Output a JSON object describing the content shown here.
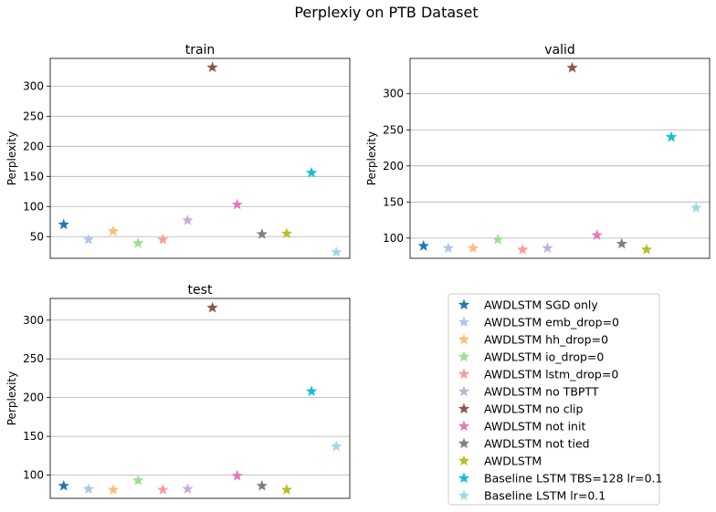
{
  "figure": {
    "title": "Perplexiy on PTB Dataset"
  },
  "series_colors": {
    "AWDLSTM SGD only": "#1f77b4",
    "AWDLSTM emb_drop=0": "#aec7e8",
    "AWDLSTM hh_drop=0": "#ffbb78",
    "AWDLSTM io_drop=0": "#98df8a",
    "AWDLSTM lstm_drop=0": "#ff9896",
    "AWDLSTM no TBPTT": "#c5b0d5",
    "AWDLSTM no clip": "#8c564b",
    "AWDLSTM not init": "#e377c2",
    "AWDLSTM not tied": "#7f7f7f",
    "AWDLSTM": "#bcbd22",
    "Baseline LSTM TBS=128 lr=0.1": "#17becf",
    "Baseline LSTM lr=0.1": "#9edae5"
  },
  "legend": {
    "entries": [
      "AWDLSTM SGD only",
      "AWDLSTM emb_drop=0",
      "AWDLSTM hh_drop=0",
      "AWDLSTM io_drop=0",
      "AWDLSTM lstm_drop=0",
      "AWDLSTM no TBPTT",
      "AWDLSTM no clip",
      "AWDLSTM not init",
      "AWDLSTM not tied",
      "AWDLSTM",
      "Baseline LSTM TBS=128 lr=0.1",
      "Baseline LSTM lr=0.1"
    ],
    "placement": "bottom-right"
  },
  "chart_data": [
    {
      "type": "scatter",
      "title": "train",
      "xlabel": "",
      "ylabel": "Perplexity",
      "ylim": [
        14,
        346
      ],
      "yticks": [
        50,
        100,
        150,
        200,
        250,
        300
      ],
      "grid": "y",
      "marker": "star",
      "series": [
        {
          "name": "AWDLSTM SGD only",
          "x": 0,
          "y": 70
        },
        {
          "name": "AWDLSTM emb_drop=0",
          "x": 1,
          "y": 45
        },
        {
          "name": "AWDLSTM hh_drop=0",
          "x": 2,
          "y": 59
        },
        {
          "name": "AWDLSTM io_drop=0",
          "x": 3,
          "y": 39
        },
        {
          "name": "AWDLSTM lstm_drop=0",
          "x": 4,
          "y": 45
        },
        {
          "name": "AWDLSTM no TBPTT",
          "x": 5,
          "y": 77
        },
        {
          "name": "AWDLSTM no clip",
          "x": 6,
          "y": 331
        },
        {
          "name": "AWDLSTM not init",
          "x": 7,
          "y": 103
        },
        {
          "name": "AWDLSTM not tied",
          "x": 8,
          "y": 54
        },
        {
          "name": "AWDLSTM",
          "x": 9,
          "y": 55
        },
        {
          "name": "Baseline LSTM TBS=128 lr=0.1",
          "x": 10,
          "y": 156
        },
        {
          "name": "Baseline LSTM lr=0.1",
          "x": 11,
          "y": 24
        }
      ]
    },
    {
      "type": "scatter",
      "title": "valid",
      "xlabel": "",
      "ylabel": "Perplexity",
      "ylim": [
        72,
        349
      ],
      "yticks": [
        100,
        150,
        200,
        250,
        300
      ],
      "grid": "y",
      "marker": "star",
      "series": [
        {
          "name": "AWDLSTM SGD only",
          "x": 0,
          "y": 89
        },
        {
          "name": "AWDLSTM emb_drop=0",
          "x": 1,
          "y": 86
        },
        {
          "name": "AWDLSTM hh_drop=0",
          "x": 2,
          "y": 86
        },
        {
          "name": "AWDLSTM io_drop=0",
          "x": 3,
          "y": 98
        },
        {
          "name": "AWDLSTM lstm_drop=0",
          "x": 4,
          "y": 84
        },
        {
          "name": "AWDLSTM no TBPTT",
          "x": 5,
          "y": 86
        },
        {
          "name": "AWDLSTM no clip",
          "x": 6,
          "y": 336
        },
        {
          "name": "AWDLSTM not init",
          "x": 7,
          "y": 104
        },
        {
          "name": "AWDLSTM not tied",
          "x": 8,
          "y": 92
        },
        {
          "name": "AWDLSTM",
          "x": 9,
          "y": 84
        },
        {
          "name": "Baseline LSTM TBS=128 lr=0.1",
          "x": 10,
          "y": 240
        },
        {
          "name": "Baseline LSTM lr=0.1",
          "x": 11,
          "y": 142
        }
      ]
    },
    {
      "type": "scatter",
      "title": "test",
      "xlabel": "",
      "ylabel": "Perplexity",
      "ylim": [
        70,
        328
      ],
      "yticks": [
        100,
        150,
        200,
        250,
        300
      ],
      "grid": "y",
      "marker": "star",
      "series": [
        {
          "name": "AWDLSTM SGD only",
          "x": 0,
          "y": 86
        },
        {
          "name": "AWDLSTM emb_drop=0",
          "x": 1,
          "y": 82
        },
        {
          "name": "AWDLSTM hh_drop=0",
          "x": 2,
          "y": 81
        },
        {
          "name": "AWDLSTM io_drop=0",
          "x": 3,
          "y": 93
        },
        {
          "name": "AWDLSTM lstm_drop=0",
          "x": 4,
          "y": 81
        },
        {
          "name": "AWDLSTM no TBPTT",
          "x": 5,
          "y": 82
        },
        {
          "name": "AWDLSTM no clip",
          "x": 6,
          "y": 316
        },
        {
          "name": "AWDLSTM not init",
          "x": 7,
          "y": 99
        },
        {
          "name": "AWDLSTM not tied",
          "x": 8,
          "y": 86
        },
        {
          "name": "AWDLSTM",
          "x": 9,
          "y": 81
        },
        {
          "name": "Baseline LSTM TBS=128 lr=0.1",
          "x": 10,
          "y": 208
        },
        {
          "name": "Baseline LSTM lr=0.1",
          "x": 11,
          "y": 137
        }
      ]
    }
  ]
}
